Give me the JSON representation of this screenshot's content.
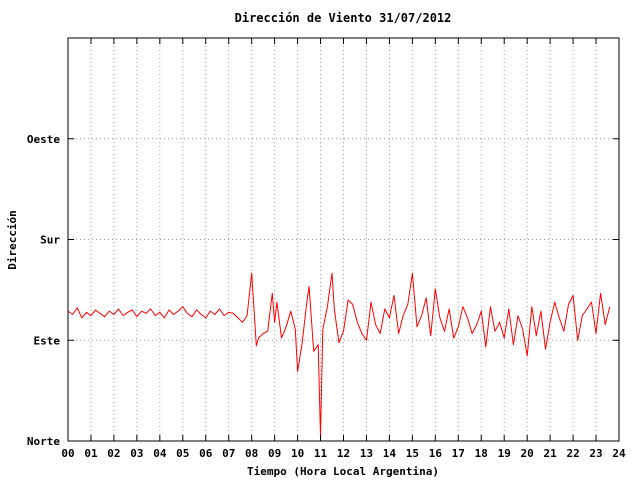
{
  "chart_data": {
    "type": "line",
    "title": "Dirección de Viento 31/07/2012",
    "xlabel": "Tiempo (Hora Local Argentina)",
    "ylabel": "Dirección",
    "xlim": [
      0,
      24
    ],
    "ylim": [
      0,
      360
    ],
    "x_ticks": [
      "00",
      "01",
      "02",
      "03",
      "04",
      "05",
      "06",
      "07",
      "08",
      "09",
      "10",
      "11",
      "12",
      "13",
      "14",
      "15",
      "16",
      "17",
      "18",
      "19",
      "20",
      "21",
      "22",
      "23",
      "24"
    ],
    "y_ticks": [
      {
        "value": 0,
        "label": "Norte"
      },
      {
        "value": 90,
        "label": "Este"
      },
      {
        "value": 180,
        "label": "Sur"
      },
      {
        "value": 270,
        "label": "Oeste"
      }
    ],
    "grid": true,
    "series_color": "#ff0000",
    "series": [
      {
        "x": [
          0.0,
          0.2,
          0.4,
          0.6,
          0.8,
          1.0,
          1.2,
          1.4,
          1.6,
          1.8,
          2.0,
          2.2,
          2.4,
          2.6,
          2.8,
          3.0,
          3.2,
          3.4,
          3.6,
          3.8,
          4.0,
          4.2,
          4.4,
          4.6,
          4.8,
          5.0,
          5.2,
          5.4,
          5.6,
          5.8,
          6.0,
          6.2,
          6.4,
          6.6,
          6.8,
          7.0,
          7.2,
          7.4,
          7.6,
          7.8,
          8.0,
          8.1,
          8.2,
          8.3,
          8.5,
          8.7,
          8.9,
          9.0,
          9.1,
          9.3,
          9.5,
          9.7,
          9.9,
          10.0,
          10.2,
          10.4,
          10.5,
          10.7,
          10.9,
          11.0,
          11.1,
          11.3,
          11.5,
          11.6,
          11.8,
          12.0,
          12.2,
          12.4,
          12.6,
          12.8,
          13.0,
          13.2,
          13.4,
          13.6,
          13.8,
          14.0,
          14.2,
          14.4,
          14.6,
          14.8,
          15.0,
          15.2,
          15.4,
          15.6,
          15.8,
          16.0,
          16.2,
          16.4,
          16.6,
          16.8,
          17.0,
          17.2,
          17.4,
          17.6,
          17.8,
          18.0,
          18.2,
          18.4,
          18.6,
          18.8,
          19.0,
          19.2,
          19.4,
          19.6,
          19.8,
          20.0,
          20.2,
          20.4,
          20.6,
          20.8,
          21.0,
          21.2,
          21.4,
          21.6,
          21.8,
          22.0,
          22.2,
          22.4,
          22.6,
          22.8,
          23.0,
          23.2,
          23.4,
          23.6
        ],
        "y": [
          116,
          113,
          119,
          110,
          115,
          112,
          117,
          114,
          111,
          116,
          113,
          118,
          112,
          115,
          117,
          111,
          116,
          114,
          118,
          112,
          115,
          110,
          117,
          113,
          116,
          120,
          114,
          111,
          117,
          113,
          110,
          116,
          113,
          118,
          112,
          115,
          114,
          110,
          106,
          112,
          150,
          118,
          85,
          92,
          96,
          98,
          132,
          106,
          124,
          92,
          102,
          116,
          100,
          62,
          88,
          124,
          138,
          80,
          86,
          4,
          100,
          120,
          150,
          118,
          88,
          98,
          126,
          122,
          106,
          96,
          90,
          124,
          104,
          96,
          118,
          110,
          130,
          96,
          112,
          122,
          150,
          102,
          112,
          128,
          94,
          136,
          110,
          98,
          118,
          92,
          102,
          120,
          110,
          96,
          104,
          116,
          84,
          120,
          98,
          106,
          92,
          118,
          86,
          112,
          100,
          76,
          120,
          94,
          116,
          82,
          106,
          124,
          110,
          98,
          122,
          130,
          90,
          112,
          118,
          124,
          96,
          132,
          104,
          120
        ]
      }
    ]
  }
}
